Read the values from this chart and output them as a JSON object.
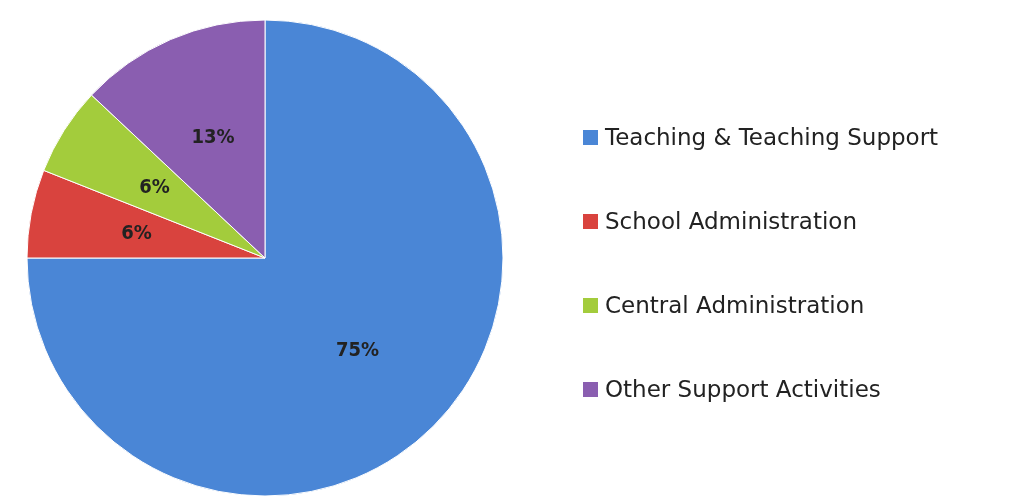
{
  "chart_data": {
    "type": "pie",
    "categories": [
      "Teaching & Teaching Support",
      "School Administration",
      "Central Administration",
      "Other Support Activities"
    ],
    "values": [
      75,
      6,
      6,
      13
    ],
    "colors": [
      "#4a86d6",
      "#d9433e",
      "#a3cc3c",
      "#8a5eb0"
    ],
    "value_labels": [
      "75%",
      "6%",
      "6%",
      "13%"
    ],
    "legend": "right"
  }
}
